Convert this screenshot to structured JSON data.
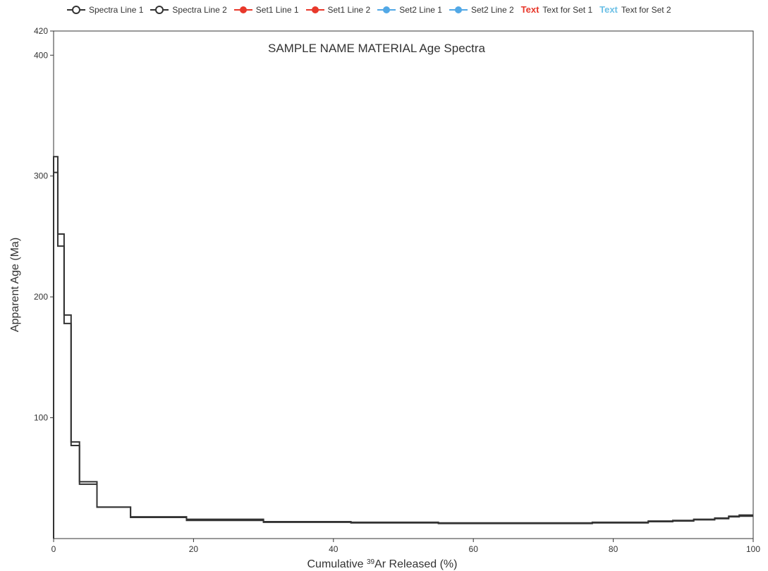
{
  "legend": [
    {
      "label": "Spectra Line 1",
      "symbol": "open-circle",
      "color": "#333333"
    },
    {
      "label": "Spectra Line 2",
      "symbol": "open-circle",
      "color": "#333333"
    },
    {
      "label": "Set1 Line 1",
      "symbol": "filled-circle",
      "color": "#e8382b"
    },
    {
      "label": "Set1 Line 2",
      "symbol": "filled-circle",
      "color": "#e8382b"
    },
    {
      "label": "Set2 Line 1",
      "symbol": "filled-circle",
      "color": "#52a8e6"
    },
    {
      "label": "Set2 Line 2",
      "symbol": "filled-circle",
      "color": "#52a8e6"
    },
    {
      "label": "Text for Set 1",
      "symbol": "text",
      "symbol_text": "Text",
      "color": "#e8382b"
    },
    {
      "label": "Text for Set 2",
      "symbol": "text",
      "symbol_text": "Text",
      "color": "#6cc0e6"
    }
  ],
  "chart_data": {
    "type": "line",
    "step": true,
    "title": "SAMPLE NAME MATERIAL Age Spectra",
    "xlabel": "Cumulative ³⁹Ar Released (%)",
    "xlabel_main": "Cumulative ",
    "xlabel_sup": "39",
    "xlabel_tail": "Ar Released (%)",
    "ylabel": "Apparent Age (Ma)",
    "xlim": [
      0,
      100
    ],
    "ylim": [
      0,
      420
    ],
    "xticks": [
      0,
      20,
      40,
      60,
      80,
      100
    ],
    "yticks": [
      100,
      200,
      300,
      400,
      420
    ],
    "grid": false,
    "legend_position": "top",
    "line_color": "#333333",
    "series": [
      {
        "name": "Spectra Line 1",
        "x": [
          0,
          0.6,
          1.5,
          2.5,
          3.7,
          6.2,
          11.0,
          19.0,
          30.0,
          42.5,
          55.0,
          66.0,
          77.0,
          85.0,
          88.5,
          91.5,
          94.5,
          96.5,
          98.0,
          99.3,
          100
        ],
        "y": [
          316,
          252,
          185,
          80,
          47,
          26,
          18,
          16,
          14,
          13.5,
          13,
          13,
          13.5,
          14.5,
          15,
          16,
          17,
          18.5,
          19.5,
          19.5,
          19.5
        ]
      },
      {
        "name": "Spectra Line 2",
        "x": [
          0,
          0.6,
          1.5,
          2.5,
          3.7,
          6.2,
          11.0,
          19.0,
          30.0,
          42.5,
          55.0,
          66.0,
          77.0,
          85.0,
          88.5,
          91.5,
          94.5,
          96.5,
          98.0,
          99.3,
          100
        ],
        "y": [
          303,
          242,
          178,
          77,
          45,
          26,
          17.5,
          15,
          13.5,
          13,
          12.5,
          12.5,
          13,
          14,
          14.5,
          15.5,
          16.5,
          18,
          18.5,
          18.5,
          18.5
        ]
      }
    ]
  }
}
